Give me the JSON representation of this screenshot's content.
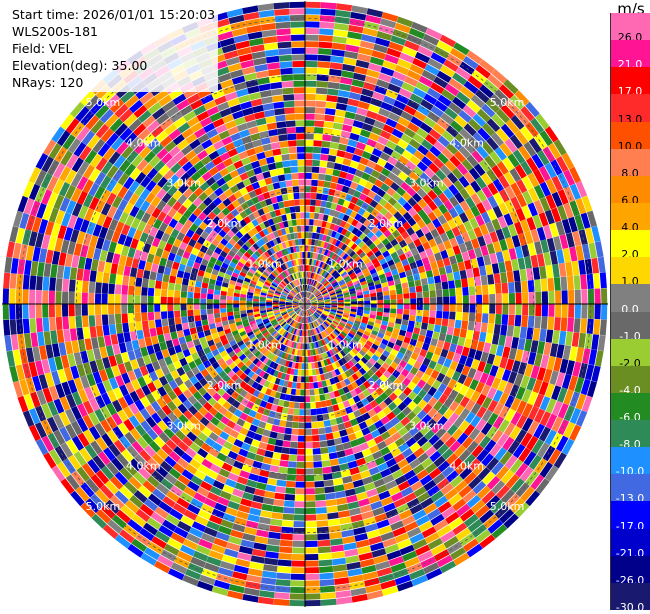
{
  "info": {
    "start_time": "Start time: 2026/01/01 15:20:03",
    "instrument": "WLS200s-181",
    "field": "Field: VEL",
    "elevation": "Elevation(deg): 35.00",
    "nrays": "NRays: 120"
  },
  "colorbar": {
    "unit": "m/s",
    "labels": [
      "26.0",
      "21.0",
      "17.0",
      "13.0",
      "10.0",
      "8.0",
      "6.0",
      "4.0",
      "2.0",
      "1.0",
      "0.0",
      "-1.0",
      "-2.0",
      "-4.0",
      "-6.0",
      "-8.0",
      "-10.0",
      "-13.0",
      "-17.0",
      "-21.0",
      "-26.0",
      "-30.0"
    ],
    "colors": [
      "#ff69b4",
      "#ff1493",
      "#ff0000",
      "#ff2a2a",
      "#ff5000",
      "#ff7f50",
      "#ff8c00",
      "#ffa500",
      "#ffff00",
      "#ffd700",
      "#808080",
      "#696969",
      "#9acd32",
      "#6b8e23",
      "#228b22",
      "#2e8b57",
      "#1e90ff",
      "#4169e1",
      "#0000ff",
      "#0000cd",
      "#00008b",
      "#191970"
    ]
  },
  "range_labels": [
    "1.0km",
    "2.0km",
    "3.0km",
    "4.0km",
    "5.0km"
  ],
  "chart_data": {
    "type": "heatmap",
    "field": "VEL",
    "elevation_deg": 35.0,
    "n_rays": 120,
    "range_rings_km": [
      1,
      2,
      3,
      4,
      5
    ],
    "color_scale_m_s": [
      -30,
      -26,
      -21,
      -17,
      -13,
      -10,
      -8,
      -6,
      -4,
      -2,
      -1,
      0,
      1,
      2,
      4,
      6,
      8,
      10,
      13,
      17,
      21,
      26
    ]
  }
}
